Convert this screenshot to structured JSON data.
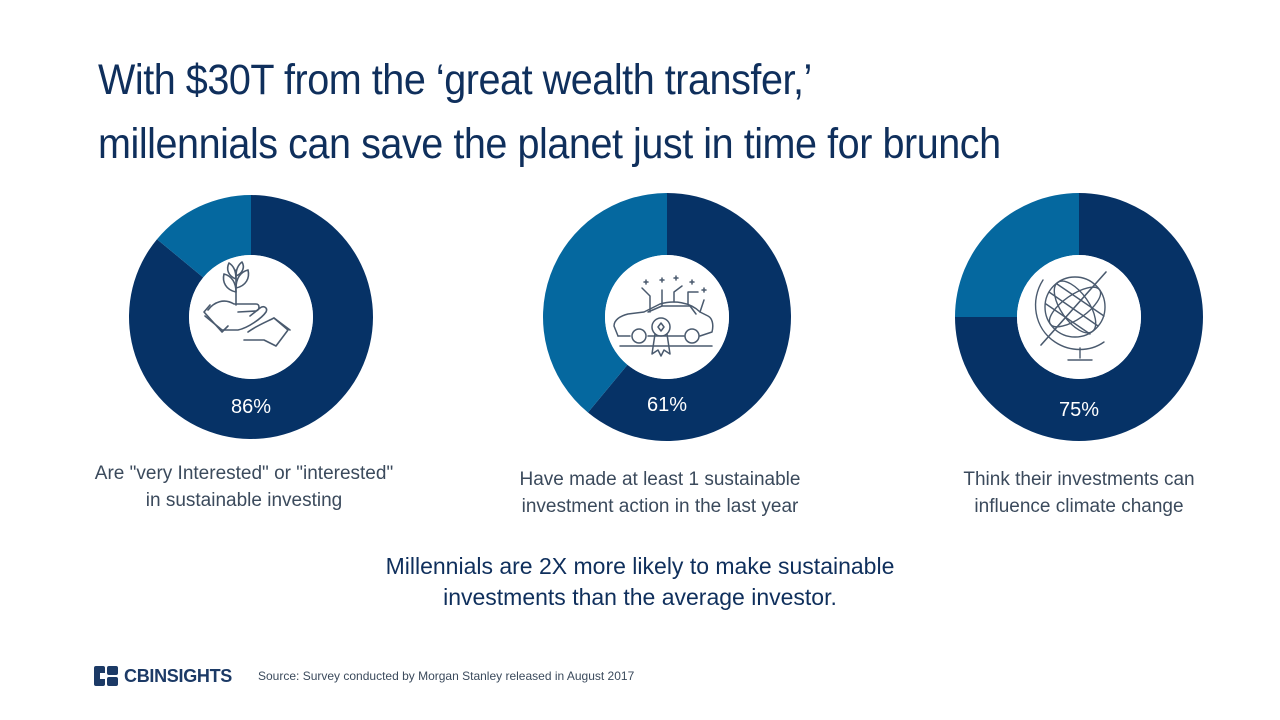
{
  "title": {
    "line1": "With $30T from the ‘great wealth transfer,’",
    "line2": "millennials can save the planet just in time for brunch"
  },
  "colors": {
    "primary": "#063266",
    "secondary": "#05689f",
    "text": "#3b4a5c",
    "title": "#0f2f5c"
  },
  "chart_data": [
    {
      "type": "pie",
      "values": [
        86,
        14
      ],
      "label": "86%",
      "caption_lines": [
        "Are \"very Interested\" or \"interested\"",
        "in sustainable investing"
      ],
      "icon": "hand-plant-icon"
    },
    {
      "type": "pie",
      "values": [
        61,
        39
      ],
      "label": "61%",
      "caption_lines": [
        "Have made at least 1 sustainable",
        "investment action in the last year"
      ],
      "icon": "electric-car-icon"
    },
    {
      "type": "pie",
      "values": [
        75,
        25
      ],
      "label": "75%",
      "caption_lines": [
        "Think their investments can",
        "influence climate change"
      ],
      "icon": "globe-icon"
    }
  ],
  "takeaway": {
    "line1": "Millennials are 2X more likely to make sustainable",
    "line2": "investments than the average investor."
  },
  "footer": {
    "logo": "CBINSIGHTS",
    "source": "Source: Survey conducted by Morgan Stanley released in August 2017"
  }
}
